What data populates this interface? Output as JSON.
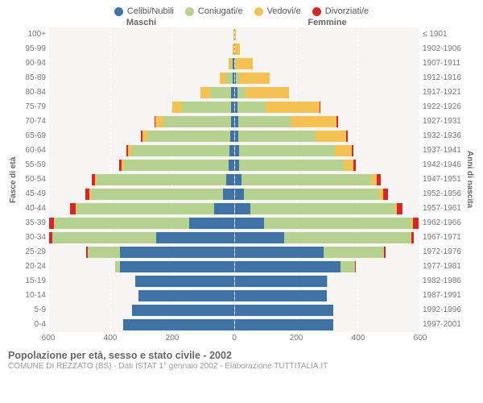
{
  "legend": [
    {
      "label": "Celibi/Nubili",
      "color": "#3f73a6"
    },
    {
      "label": "Coniugati/e",
      "color": "#b5d28f"
    },
    {
      "label": "Vedovi/e",
      "color": "#f5c153"
    },
    {
      "label": "Divorziati/e",
      "color": "#d62728"
    }
  ],
  "headers": {
    "left": "Maschi",
    "right": "Femmine"
  },
  "yaxis_left_title": "Fasce di età",
  "yaxis_right_title": "Anni di nascita",
  "x_max": 600,
  "x_ticks": [
    600,
    400,
    200,
    0,
    200,
    400,
    600
  ],
  "colors": {
    "single": "#3f73a6",
    "married": "#b5d28f",
    "widowed": "#f5c153",
    "divorced": "#d62728",
    "plot_bg": "#f6f5f3",
    "grid": "#ffffff"
  },
  "rows": [
    {
      "age": "100+",
      "birth": "≤ 1901",
      "m": [
        0,
        0,
        2,
        0
      ],
      "f": [
        0,
        0,
        4,
        0
      ]
    },
    {
      "age": "95-99",
      "birth": "1902-1906",
      "m": [
        0,
        0,
        4,
        0
      ],
      "f": [
        0,
        0,
        18,
        0
      ]
    },
    {
      "age": "90-94",
      "birth": "1907-1911",
      "m": [
        3,
        5,
        10,
        0
      ],
      "f": [
        2,
        3,
        55,
        0
      ]
    },
    {
      "age": "85-89",
      "birth": "1912-1916",
      "m": [
        4,
        20,
        22,
        0
      ],
      "f": [
        5,
        10,
        100,
        0
      ]
    },
    {
      "age": "80-84",
      "birth": "1917-1921",
      "m": [
        8,
        70,
        30,
        0
      ],
      "f": [
        8,
        28,
        140,
        0
      ]
    },
    {
      "age": "75-79",
      "birth": "1922-1926",
      "m": [
        10,
        160,
        30,
        0
      ],
      "f": [
        10,
        90,
        175,
        2
      ]
    },
    {
      "age": "70-74",
      "birth": "1927-1931",
      "m": [
        10,
        220,
        25,
        2
      ],
      "f": [
        12,
        170,
        150,
        5
      ]
    },
    {
      "age": "65-69",
      "birth": "1932-1936",
      "m": [
        12,
        270,
        15,
        5
      ],
      "f": [
        12,
        250,
        100,
        5
      ]
    },
    {
      "age": "60-64",
      "birth": "1937-1941",
      "m": [
        14,
        320,
        10,
        6
      ],
      "f": [
        15,
        310,
        55,
        6
      ]
    },
    {
      "age": "55-59",
      "birth": "1942-1946",
      "m": [
        18,
        340,
        6,
        8
      ],
      "f": [
        15,
        340,
        30,
        8
      ]
    },
    {
      "age": "50-54",
      "birth": "1947-1951",
      "m": [
        25,
        420,
        5,
        12
      ],
      "f": [
        22,
        420,
        20,
        12
      ]
    },
    {
      "age": "45-49",
      "birth": "1952-1956",
      "m": [
        35,
        430,
        4,
        14
      ],
      "f": [
        30,
        440,
        12,
        15
      ]
    },
    {
      "age": "40-44",
      "birth": "1957-1961",
      "m": [
        65,
        445,
        3,
        18
      ],
      "f": [
        50,
        470,
        8,
        18
      ]
    },
    {
      "age": "35-39",
      "birth": "1962-1966",
      "m": [
        145,
        440,
        2,
        16
      ],
      "f": [
        95,
        480,
        5,
        18
      ]
    },
    {
      "age": "30-34",
      "birth": "1967-1971",
      "m": [
        255,
        340,
        1,
        10
      ],
      "f": [
        160,
        410,
        3,
        10
      ]
    },
    {
      "age": "25-29",
      "birth": "1972-1976",
      "m": [
        370,
        105,
        0,
        5
      ],
      "f": [
        290,
        195,
        1,
        5
      ]
    },
    {
      "age": "20-24",
      "birth": "1977-1981",
      "m": [
        370,
        15,
        0,
        0
      ],
      "f": [
        345,
        45,
        0,
        1
      ]
    },
    {
      "age": "15-19",
      "birth": "1982-1986",
      "m": [
        320,
        0,
        0,
        0
      ],
      "f": [
        300,
        1,
        0,
        0
      ]
    },
    {
      "age": "10-14",
      "birth": "1987-1991",
      "m": [
        310,
        0,
        0,
        0
      ],
      "f": [
        300,
        0,
        0,
        0
      ]
    },
    {
      "age": "5-9",
      "birth": "1992-1996",
      "m": [
        330,
        0,
        0,
        0
      ],
      "f": [
        320,
        0,
        0,
        0
      ]
    },
    {
      "age": "0-4",
      "birth": "1997-2001",
      "m": [
        360,
        0,
        0,
        0
      ],
      "f": [
        320,
        0,
        0,
        0
      ]
    }
  ],
  "footer": {
    "title": "Popolazione per età, sesso e stato civile - 2002",
    "sub": "COMUNE DI REZZATO (BS) - Dati ISTAT 1° gennaio 2002 - Elaborazione TUTTITALIA.IT"
  }
}
